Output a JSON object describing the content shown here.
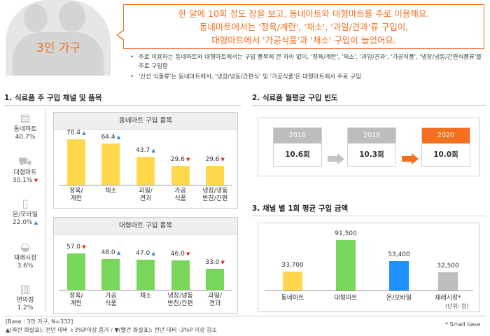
{
  "header": {
    "household_label": "3인 가구",
    "callout_lines": [
      "한 달에 10회 정도 장을 보고, 동네마트와 대형마트를 주로 이용해요.",
      "동네마트에서는 '정육/계란', '채소', '과일/견과'류 구입이,",
      "대형마트에서 '가공식품'과 '채소' 구입이 늘었어요."
    ],
    "bullets": [
      "주로 이용하는 동네마트와 대형마트에서는 구입 품목에 큰 차이 없이, '정육/계란', '채소', '과일/견과', '가공식품', '냉장/냉동/간편식품류'를 주로 구입함",
      "'신선 식품류'는 동네마트에서, '냉장/냉동/간편식' 및 '가공식품'은 대형마트에서 주로 구입"
    ]
  },
  "section1": {
    "title": "1. 식료품 주 구입 채널 및 품목",
    "channels": [
      {
        "name": "동네마트",
        "pct": "40.7%",
        "trend": "",
        "icon": "store-icon"
      },
      {
        "name": "대형마트",
        "pct": "30.1%",
        "trend": "down",
        "icon": "cart-icon"
      },
      {
        "name": "온/모바일",
        "pct": "22.0%",
        "trend": "up",
        "icon": "mobile-icon"
      },
      {
        "name": "재래시장",
        "pct": "3.6%",
        "trend": "",
        "icon": "basket-icon"
      },
      {
        "name": "편의점",
        "pct": "1.2%",
        "trend": "",
        "icon": "shop-icon"
      }
    ]
  },
  "section2": {
    "title": "2. 식료품 월평균 구입 빈도",
    "years": [
      {
        "year": "2018",
        "value": "10.6회",
        "highlight": false
      },
      {
        "year": "2019",
        "value": "10.3회",
        "highlight": false
      },
      {
        "year": "2020",
        "value": "10.0회",
        "highlight": true
      }
    ]
  },
  "section3": {
    "title": "3. 채널 별 1회 평균 구입 금액",
    "unit": "(단위: 원)"
  },
  "footer": {
    "base": "[Base : 3인 가구, N=332]",
    "legend": "▲(파란 화살표): 전년 대비 +3%P이상 증가 / ▼(빨간 화살표): 전년 대비 -3%P 이상 감소",
    "small_base": "*  Small base"
  },
  "colors": {
    "orange": "#f37021",
    "yellow": "#ffd84d",
    "green": "#78d65a",
    "blue": "#1e90ff",
    "gray": "#bdbdbd"
  },
  "chart_data": [
    {
      "type": "bar",
      "title": "동네마트 구입 품목",
      "categories": [
        "정육/\n계란",
        "채소",
        "과일/\n견과",
        "가공\n식품",
        "냉장/냉동\n반찬/간편"
      ],
      "values": [
        70.4,
        64.4,
        43.7,
        29.6,
        29.6
      ],
      "value_labels": [
        "70.4",
        "64.4",
        "43.7",
        "29.6",
        "29.6"
      ],
      "trends": [
        "up",
        "up",
        "up",
        "down",
        "down"
      ],
      "color": "#ffd84d"
    },
    {
      "type": "bar",
      "title": "대형마트 구입 품목",
      "categories": [
        "정육/\n계란",
        "가공\n식품",
        "채소",
        "냉장/냉동\n반찬/간편",
        "과일/\n견과"
      ],
      "values": [
        57.0,
        48.0,
        47.0,
        46.0,
        33.0
      ],
      "value_labels": [
        "57.0",
        "48.0",
        "47.0",
        "46.0",
        "33.0"
      ],
      "trends": [
        "down",
        "up",
        "up",
        "down",
        "down"
      ],
      "color": "#78d65a"
    },
    {
      "type": "bar",
      "title": "",
      "categories": [
        "동네마트",
        "대형마트",
        "온/모바일",
        "재래시장*"
      ],
      "values": [
        33700,
        91500,
        53400,
        32500
      ],
      "value_labels": [
        "33,700",
        "91,500",
        "53,400",
        "32,500"
      ],
      "colors": [
        "#ffd84d",
        "#78d65a",
        "#1e90ff",
        "#bdbdbd"
      ]
    }
  ]
}
